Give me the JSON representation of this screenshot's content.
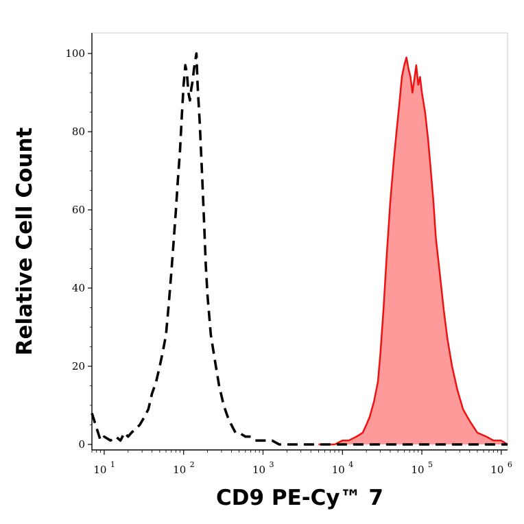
{
  "chart_data": {
    "type": "area",
    "xlabel": "CD9 PE-Cy™ 7",
    "ylabel": "Relative Cell Count",
    "x_scale": "log",
    "xlim": [
      7,
      1200000
    ],
    "ylim": [
      0,
      100
    ],
    "x_ticks": [
      {
        "base": "10",
        "exp": "1",
        "value": 10
      },
      {
        "base": "10",
        "exp": "2",
        "value": 100
      },
      {
        "base": "10",
        "exp": "3",
        "value": 1000
      },
      {
        "base": "10",
        "exp": "4",
        "value": 10000
      },
      {
        "base": "10",
        "exp": "5",
        "value": 100000
      },
      {
        "base": "10",
        "exp": "6",
        "value": 1000000
      }
    ],
    "y_ticks": [
      "0",
      "20",
      "40",
      "60",
      "80",
      "100"
    ],
    "colors": {
      "control": "#000000",
      "stained_line": "#ee1111",
      "stained_fill": "#ff9a9a"
    },
    "series": [
      {
        "style": "dashed-black-outline",
        "x": [
          7,
          9,
          10,
          12,
          14,
          16,
          18,
          20,
          22,
          25,
          28,
          32,
          36,
          40,
          45,
          50,
          55,
          60,
          65,
          70,
          75,
          80,
          85,
          90,
          95,
          100,
          105,
          110,
          115,
          120,
          125,
          130,
          135,
          140,
          145,
          150,
          160,
          170,
          180,
          190,
          200,
          220,
          250,
          280,
          320,
          360,
          400,
          450,
          500,
          600,
          700,
          800,
          1000,
          1300,
          1600,
          2000,
          3000,
          5000,
          8000,
          15000,
          30000,
          60000,
          150000,
          400000,
          1000000,
          1200000
        ],
        "y": [
          8,
          1,
          2,
          1,
          2,
          1,
          3,
          2,
          3,
          4,
          5,
          7,
          9,
          13,
          16,
          20,
          24,
          28,
          36,
          44,
          52,
          60,
          68,
          75,
          84,
          92,
          97,
          95,
          90,
          88,
          91,
          93,
          96,
          98,
          100,
          92,
          82,
          70,
          58,
          46,
          38,
          28,
          21,
          15,
          10,
          7,
          5,
          3,
          3,
          2,
          2,
          1,
          1,
          1,
          0,
          0,
          0,
          0,
          0,
          0,
          0,
          0,
          0,
          0,
          0,
          0
        ]
      },
      {
        "style": "red-filled",
        "x": [
          5000,
          8000,
          10000,
          12000,
          15000,
          18000,
          20000,
          22000,
          25000,
          28000,
          30000,
          33000,
          36000,
          40000,
          44000,
          48000,
          52000,
          56000,
          60000,
          64000,
          68000,
          72000,
          76000,
          80000,
          85000,
          90000,
          95000,
          100000,
          110000,
          120000,
          130000,
          140000,
          150000,
          170000,
          190000,
          210000,
          240000,
          280000,
          330000,
          400000,
          500000,
          650000,
          800000,
          1000000,
          1200000
        ],
        "y": [
          0,
          0,
          1,
          1,
          2,
          3,
          5,
          7,
          11,
          16,
          23,
          35,
          48,
          62,
          72,
          80,
          87,
          94,
          97,
          99,
          96,
          94,
          90,
          93,
          97,
          92,
          94,
          90,
          85,
          78,
          70,
          62,
          53,
          43,
          34,
          27,
          20,
          14,
          9,
          6,
          3,
          2,
          1,
          1,
          0
        ]
      }
    ]
  }
}
